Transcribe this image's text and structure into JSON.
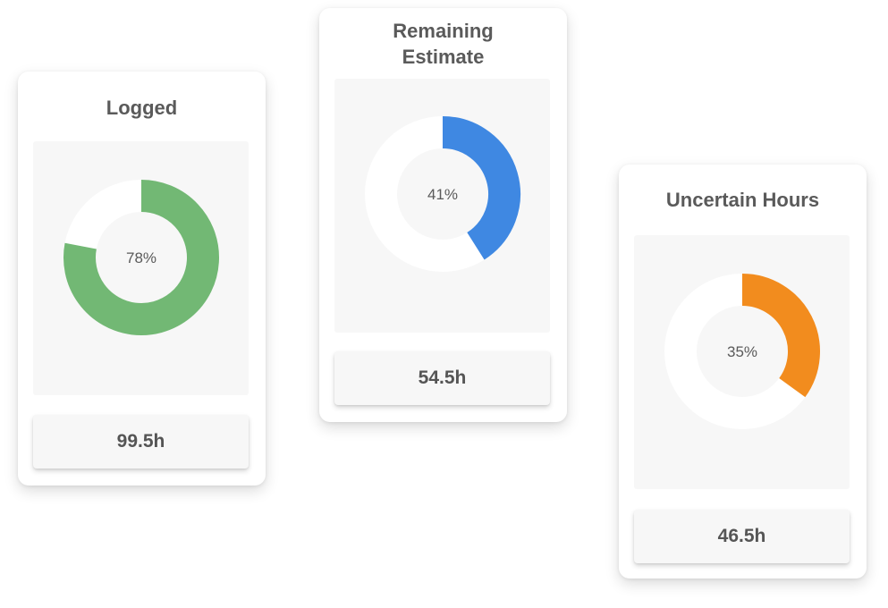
{
  "cards": [
    {
      "title": "Logged",
      "percent_label": "78%",
      "fraction": 0.78,
      "value": "99.5h",
      "color": "#72b874"
    },
    {
      "title": "Remaining Estimate",
      "percent_label": "41%",
      "fraction": 0.41,
      "value": "54.5h",
      "color": "#3f88e2"
    },
    {
      "title": "Uncertain Hours",
      "percent_label": "35%",
      "fraction": 0.35,
      "value": "46.5h",
      "color": "#f28c1e"
    }
  ]
}
